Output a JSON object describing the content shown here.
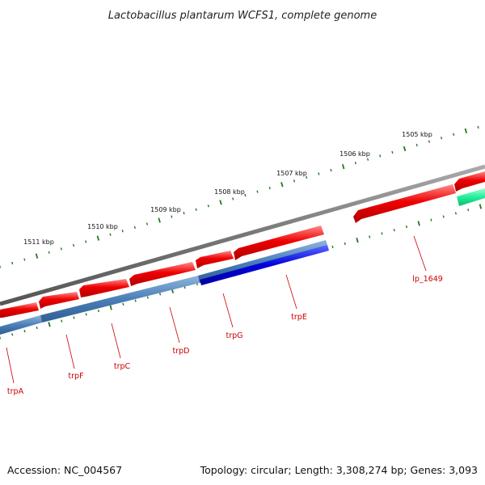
{
  "title": "Lactobacillus plantarum WCFS1, complete genome",
  "footer": {
    "accession": "Accession: NC_004567",
    "summary": "Topology: circular; Length: 3,308,274 bp; Genes: 3,093"
  },
  "colors": {
    "backbone": "#777777",
    "forward_cds": "#ee0000",
    "reverse_cds": "#4a7fb8",
    "reverse_cds_highlight": "#0000dd",
    "other_feature": "#22ee99",
    "ticks": "#1f7a1f",
    "label": "#cc0000"
  },
  "map": {
    "scale_labels": [
      "1511 kbp",
      "1510 kbp",
      "1509 kbp",
      "1508 kbp",
      "1507 kbp",
      "1506 kbp",
      "1505 kbp"
    ],
    "gene_labels": [
      "trpA",
      "trpF",
      "trpC",
      "trpD",
      "trpG",
      "trpE",
      "lp_1649"
    ]
  }
}
